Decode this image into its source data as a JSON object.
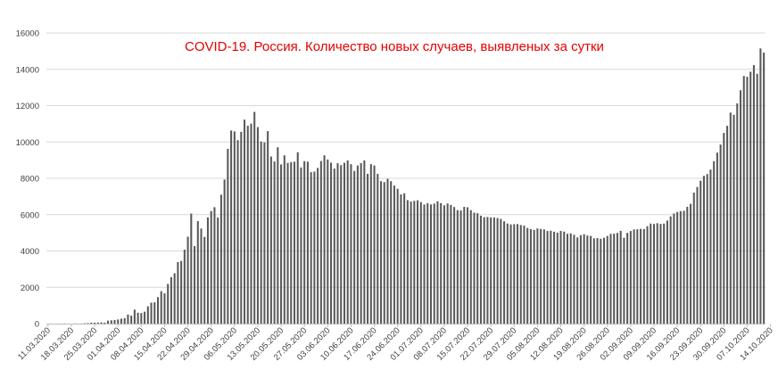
{
  "chart_data": {
    "type": "bar",
    "title": "COVID-19. Россия. Количество новых случаев, выявленых за сутки",
    "xlabel": "",
    "ylabel": "",
    "ylim": [
      0,
      16000
    ],
    "yticks": [
      0,
      2000,
      4000,
      6000,
      8000,
      10000,
      12000,
      14000,
      16000
    ],
    "grid": "horizontal",
    "legend": "none",
    "colors": {
      "bar": "#595959",
      "grid": "#d9d9d9",
      "title": "#e60000",
      "axis": "#bfbfbf"
    },
    "xtick_labels": [
      "11.03.2020",
      "18.03.2020",
      "25.03.2020",
      "01.04.2020",
      "08.04.2020",
      "15.04.2020",
      "22.04.2020",
      "29.04.2020",
      "06.05.2020",
      "13.05.2020",
      "20.05.2020",
      "27.05.2020",
      "03.06.2020",
      "10.06.2020",
      "17.06.2020",
      "24.06.2020",
      "01.07.2020",
      "08.07.2020",
      "15.07.2020",
      "22.07.2020",
      "29.07.2020",
      "05.08.2020",
      "12.08.2020",
      "19.08.2020",
      "26.08.2020",
      "02.09.2020",
      "09.09.2020",
      "16.09.2020",
      "23.09.2020",
      "30.09.2020",
      "07.10.2020",
      "14.10.2020"
    ],
    "start_date": "11.03.2020",
    "values": [
      2,
      6,
      0,
      6,
      4,
      10,
      3,
      0,
      10,
      3,
      10,
      20,
      33,
      54,
      53,
      61,
      71,
      57,
      163,
      182,
      196,
      228,
      270,
      302,
      501,
      440,
      771,
      601,
      582,
      658,
      954,
      1154,
      1175,
      1459,
      1786,
      1667,
      2186,
      2558,
      2774,
      3388,
      3448,
      4070,
      4785,
      6060,
      4268,
      5642,
      5236,
      4774,
      5849,
      6198,
      6411,
      5841,
      7099,
      7933,
      9623,
      10633,
      10581,
      10102,
      10559,
      11231,
      10899,
      11012,
      11656,
      10817,
      10028,
      9974,
      10598,
      9200,
      8926,
      9709,
      8764,
      9263,
      8849,
      8894,
      8915,
      9434,
      8599,
      8946,
      8915,
      8338,
      8371,
      8572,
      8952,
      9268,
      9035,
      8863,
      8536,
      8831,
      8726,
      8855,
      8985,
      8779,
      8404,
      8706,
      8835,
      8987,
      8248,
      8779,
      8706,
      8246,
      7843,
      7790,
      7972,
      7843,
      7600,
      7425,
      7113,
      7176,
      6800,
      6719,
      6760,
      6791,
      6693,
      6556,
      6632,
      6562,
      6611,
      6736,
      6635,
      6509,
      6615,
      6537,
      6422,
      6248,
      6234,
      6428,
      6406,
      6248,
      6109,
      6080,
      5940,
      5862,
      5871,
      5848,
      5842,
      5811,
      5765,
      5635,
      5509,
      5462,
      5475,
      5482,
      5427,
      5394,
      5267,
      5204,
      5159,
      5241,
      5212,
      5189,
      5102,
      5118,
      5061,
      5010,
      5102,
      5065,
      4945,
      4969,
      4890,
      4748,
      4870,
      4921,
      4852,
      4828,
      4696,
      4711,
      4676,
      4729,
      4829,
      4941,
      4952,
      4993,
      5110,
      4729,
      4995,
      5099,
      5185,
      5195,
      5215,
      5205,
      5363,
      5509,
      5488,
      5529,
      5488,
      5509,
      5670,
      5905,
      6065,
      6148,
      6196,
      6215,
      6431,
      6595,
      7212,
      7523,
      7867,
      8135,
      8232,
      8481,
      8945,
      9412,
      9859,
      10499,
      10888,
      11615,
      11493,
      12126,
      12846,
      13634,
      13592,
      13868,
      14231,
      13754,
      15150,
      14922
    ]
  }
}
